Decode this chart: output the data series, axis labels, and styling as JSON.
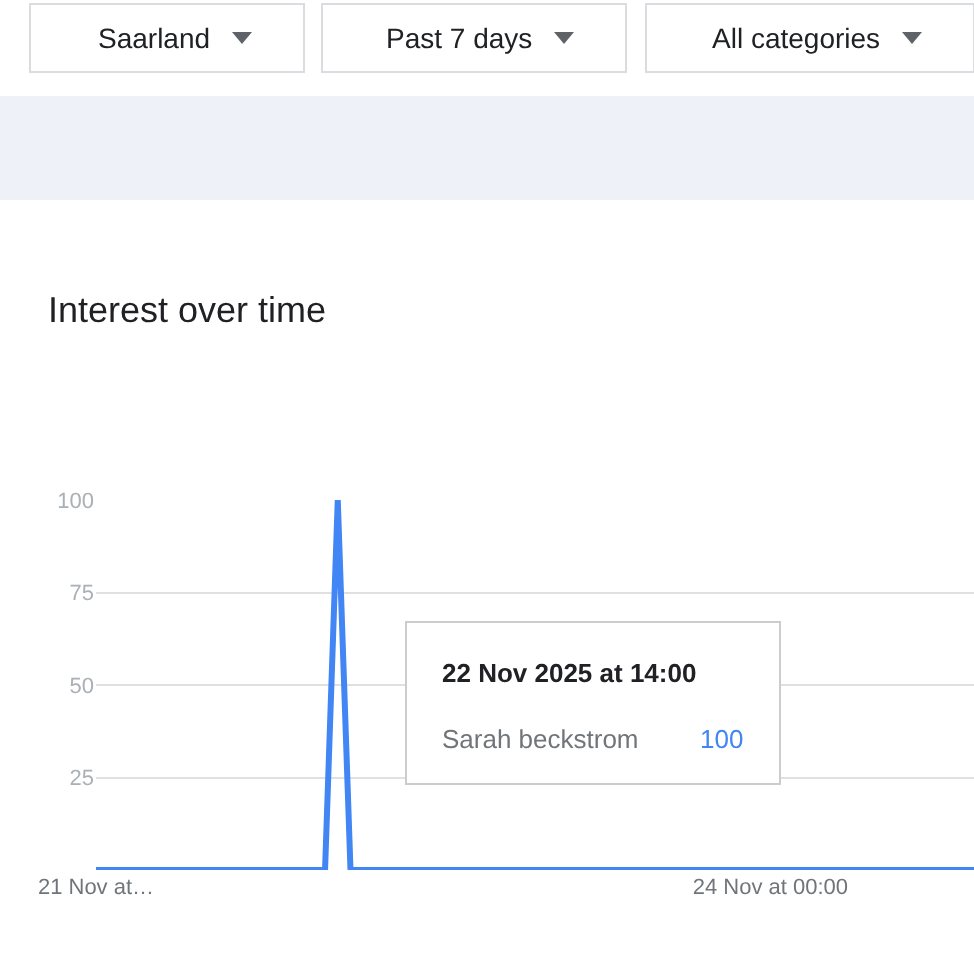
{
  "chart_data": {
    "type": "line",
    "title": "Interest over time",
    "x": [
      "2025-11-21T19:00",
      "2025-11-22T13:00",
      "2025-11-22T14:00",
      "2025-11-22T15:00",
      "2025-11-24T16:00"
    ],
    "series": [
      {
        "name": "Sarah beckstrom",
        "color": "#4285f4",
        "values": [
          0,
          0,
          100,
          0,
          0
        ]
      }
    ],
    "xlim": [
      "2025-11-21T19:00",
      "2025-11-24T16:00"
    ],
    "xticks": [
      {
        "value": "2025-11-21T19:00",
        "label": "21 Nov at…"
      },
      {
        "value": "2025-11-24T00:00",
        "label": "24 Nov at 00:00"
      }
    ],
    "ylim": [
      0,
      100
    ],
    "yticks": [
      {
        "value": 0,
        "label": null
      },
      25,
      50,
      75,
      100
    ],
    "grid": "y",
    "annotations": [
      "Saarland",
      "Past 7 days",
      "All categories",
      "22 Nov 2025 at 14:00",
      "100"
    ]
  }
}
